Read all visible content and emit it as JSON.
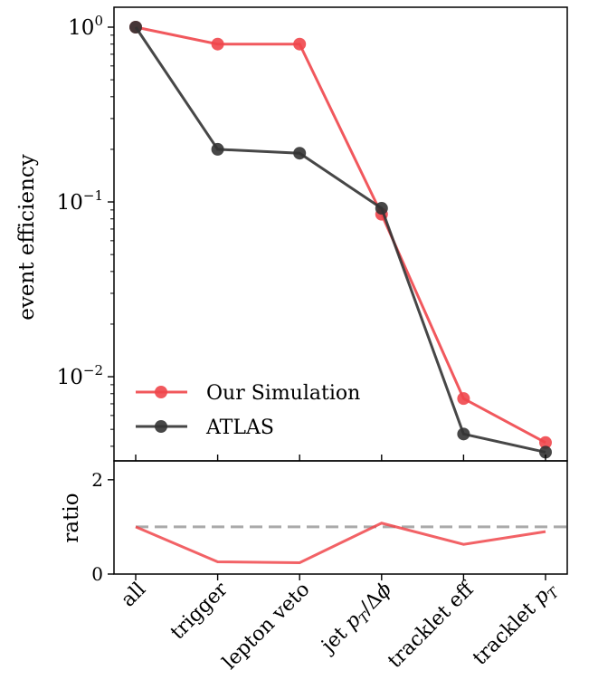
{
  "chart_data": [
    {
      "type": "line",
      "categories": [
        "all",
        "trigger",
        "lepton veto",
        "jet pT/Δϕ",
        "tracklet eff",
        "tracklet pT"
      ],
      "ylabel": "event efficiency",
      "yscale": "log",
      "ylim": [
        0.0033,
        1.3
      ],
      "yticks": [
        {
          "base": "10",
          "exp": "0"
        },
        {
          "base": "10",
          "exp": "−1"
        },
        {
          "base": "10",
          "exp": "−2"
        }
      ],
      "legend_position": "lower-left",
      "series": [
        {
          "name": "Our Simulation",
          "color": "#f0464b",
          "values": [
            1.0,
            0.8,
            0.8,
            0.085,
            0.0075,
            0.0042
          ]
        },
        {
          "name": "ATLAS",
          "color": "#333333",
          "values": [
            1.0,
            0.2,
            0.19,
            0.092,
            0.0047,
            0.0037
          ]
        }
      ]
    },
    {
      "type": "line",
      "categories": [
        "all",
        "trigger",
        "lepton veto",
        "jet pT/Δϕ",
        "tracklet eff",
        "tracklet pT"
      ],
      "ylabel": "ratio",
      "ylim": [
        0,
        2.4
      ],
      "yticks": [
        "0",
        "2"
      ],
      "reference_line": 1.0,
      "series": [
        {
          "color": "#f0464b",
          "values": [
            1.0,
            0.26,
            0.24,
            1.08,
            0.63,
            0.9
          ]
        }
      ]
    }
  ]
}
